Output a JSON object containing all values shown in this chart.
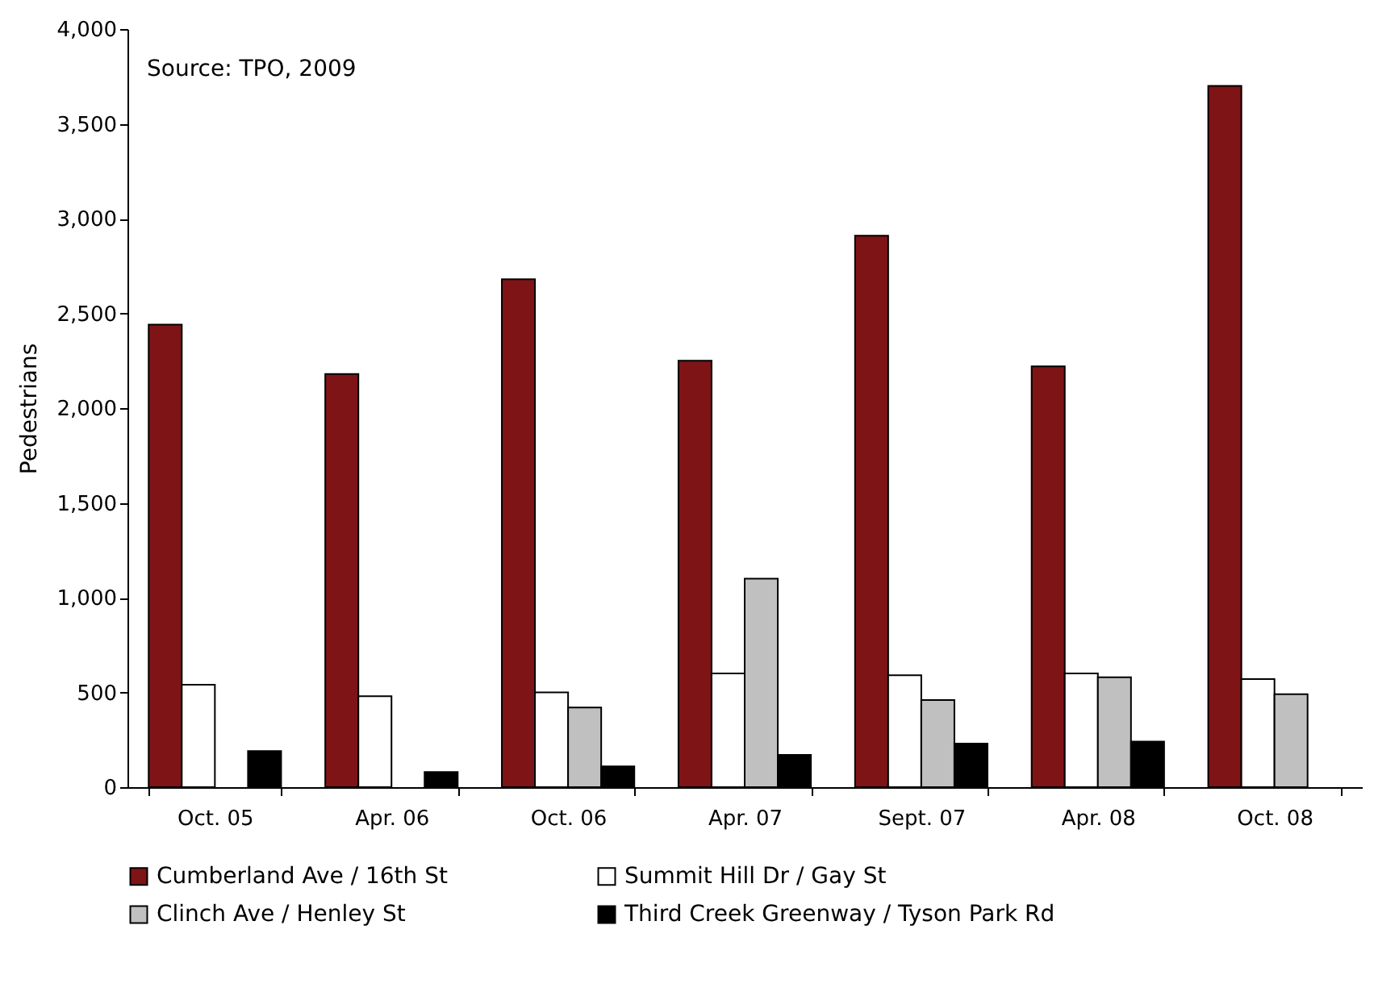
{
  "chart_data": {
    "type": "bar",
    "ylabel": "Pedestrians",
    "annotations": [
      "Source: TPO, 2009"
    ],
    "categories": [
      "Oct. 05",
      "Apr. 06",
      "Oct. 06",
      "Apr. 07",
      "Sept. 07",
      "Apr. 08",
      "Oct. 08"
    ],
    "series": [
      {
        "name": "Cumberland Ave / 16th St",
        "color": "#7f1416",
        "values": [
          2440,
          2180,
          2680,
          2250,
          2910,
          2220,
          3700
        ]
      },
      {
        "name": "Summit Hill Dr / Gay St",
        "color": "#ffffff",
        "values": [
          540,
          480,
          500,
          600,
          590,
          600,
          570
        ]
      },
      {
        "name": "Clinch Ave / Henley St",
        "color": "#c0c0c0",
        "values": [
          null,
          null,
          420,
          1100,
          460,
          580,
          490
        ]
      },
      {
        "name": "Third Creek Greenway / Tyson Park Rd",
        "color": "#000000",
        "values": [
          190,
          80,
          110,
          170,
          230,
          240,
          null
        ]
      }
    ],
    "ylim": [
      0,
      4000
    ],
    "yticks": [
      0,
      500,
      {
        "value": 1000,
        "label": "1,000"
      },
      {
        "value": 1500,
        "label": "1,500"
      },
      {
        "value": 2000,
        "label": "2,000"
      },
      {
        "value": 2500,
        "label": "2,500"
      },
      {
        "value": 3000,
        "label": "3,000"
      },
      {
        "value": 3500,
        "label": "3,500"
      },
      {
        "value": 4000,
        "label": "4,000"
      }
    ],
    "grid": false,
    "legend": "bottom"
  }
}
